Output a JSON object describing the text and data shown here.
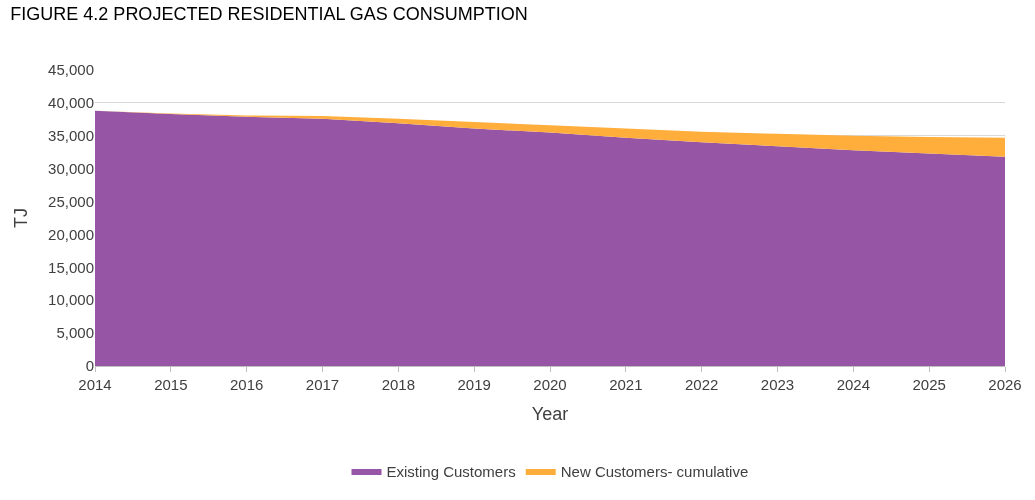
{
  "chart_data": {
    "type": "area",
    "stacked": true,
    "title": "FIGURE 4.2 PROJECTED RESIDENTIAL GAS CONSUMPTION",
    "xlabel": "Year",
    "ylabel": "TJ",
    "x": [
      2014,
      2015,
      2016,
      2017,
      2018,
      2019,
      2020,
      2021,
      2022,
      2023,
      2024,
      2025,
      2026
    ],
    "series": [
      {
        "name": "Existing Customers",
        "color": "#9656a5",
        "values": [
          38800,
          38300,
          37900,
          37600,
          36900,
          36100,
          35500,
          34700,
          34000,
          33400,
          32800,
          32300,
          31800
        ]
      },
      {
        "name": "New Customers- cumulative",
        "color": "#ffad3b",
        "values": [
          0,
          100,
          200,
          400,
          700,
          1000,
          1100,
          1400,
          1600,
          1900,
          2200,
          2500,
          2900
        ]
      }
    ],
    "xlim": [
      2014,
      2026
    ],
    "xticks": [
      2014,
      2015,
      2016,
      2017,
      2018,
      2019,
      2020,
      2021,
      2022,
      2023,
      2024,
      2025,
      2026
    ],
    "ylim": [
      0,
      45000
    ],
    "yticks": [
      {
        "value": 0,
        "label": "0"
      },
      {
        "value": 5000,
        "label": "5,000"
      },
      {
        "value": 10000,
        "label": "10,000"
      },
      {
        "value": 15000,
        "label": "15,000"
      },
      {
        "value": 20000,
        "label": "20,000"
      },
      {
        "value": 25000,
        "label": "25,000"
      },
      {
        "value": 30000,
        "label": "30,000"
      },
      {
        "value": 35000,
        "label": "35,000"
      },
      {
        "value": 40000,
        "label": "40,000"
      },
      {
        "value": 45000,
        "label": "45,000"
      }
    ],
    "grid": "y",
    "legend": "bottom"
  }
}
